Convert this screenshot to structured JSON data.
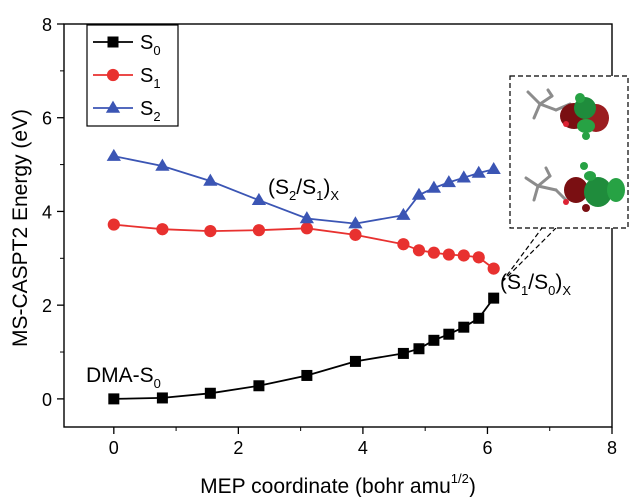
{
  "chart_data": {
    "type": "line",
    "xlabel": "MEP coordinate (bohr amu",
    "xlabel_sup": "1/2",
    "xlabel_end": ")",
    "ylabel": "MS-CASPT2 Energy (eV)",
    "xlim": [
      -0.8,
      8
    ],
    "ylim": [
      -0.6,
      8
    ],
    "xticks": [
      0,
      2,
      4,
      6,
      8
    ],
    "yticks": [
      0,
      2,
      4,
      6,
      8
    ],
    "xtick_labels": [
      "0",
      "2",
      "4",
      "6",
      "8"
    ],
    "ytick_labels": [
      "0",
      "2",
      "4",
      "6",
      "8"
    ],
    "grid": false,
    "legend_position": "top-left",
    "series": [
      {
        "name_base": "S",
        "name_sub": "0",
        "color": "#000000",
        "marker": "square",
        "x": [
          0,
          0.78,
          1.55,
          2.33,
          3.1,
          3.88,
          4.65,
          4.9,
          5.14,
          5.38,
          5.62,
          5.86,
          6.1
        ],
        "y": [
          0.0,
          0.02,
          0.12,
          0.28,
          0.5,
          0.8,
          0.97,
          1.07,
          1.25,
          1.38,
          1.53,
          1.72,
          2.15
        ]
      },
      {
        "name_base": "S",
        "name_sub": "1",
        "color": "#e8312f",
        "marker": "circle",
        "x": [
          0,
          0.78,
          1.55,
          2.33,
          3.1,
          3.88,
          4.65,
          4.9,
          5.14,
          5.38,
          5.62,
          5.86,
          6.1
        ],
        "y": [
          3.72,
          3.62,
          3.58,
          3.6,
          3.64,
          3.5,
          3.3,
          3.17,
          3.12,
          3.08,
          3.06,
          3.02,
          2.78
        ]
      },
      {
        "name_base": "S",
        "name_sub": "2",
        "color": "#3b55b4",
        "marker": "triangle",
        "x": [
          0,
          0.78,
          1.55,
          2.33,
          3.1,
          3.88,
          4.65,
          4.9,
          5.14,
          5.38,
          5.62,
          5.86,
          6.1
        ],
        "y": [
          5.18,
          4.97,
          4.65,
          4.24,
          3.85,
          3.74,
          3.92,
          4.35,
          4.5,
          4.62,
          4.72,
          4.82,
          4.9
        ]
      }
    ],
    "annotations": [
      {
        "id": "s2s1x",
        "text_open": "(S",
        "sub_a": "2",
        "text_mid": "/S",
        "sub_b": "1",
        "text_close": ")",
        "sub_c": "X"
      },
      {
        "id": "s1s0x",
        "text_open": "(S",
        "sub_a": "1",
        "text_mid": "/S",
        "sub_b": "0",
        "text_close": ")",
        "sub_c": "X"
      },
      {
        "id": "dma",
        "text": "DMA-S",
        "sub": "0"
      }
    ],
    "inset": {
      "description_icon": "molecular-orbital-images"
    }
  }
}
